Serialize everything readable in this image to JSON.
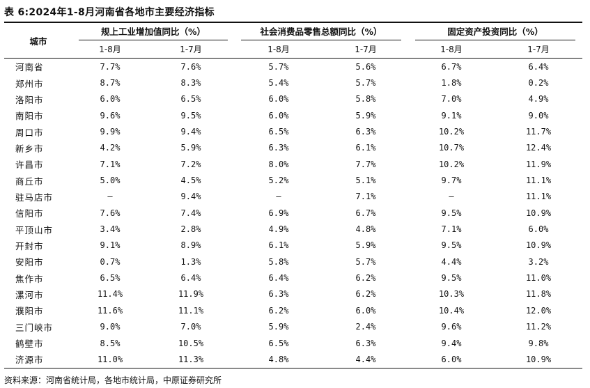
{
  "title": "表 6:2024年1-8月河南省各地市主要经济指标",
  "headers": {
    "city": "城市",
    "groups": [
      "规上工业增加值同比（%）",
      "社会消费品零售总额同比（%）",
      "固定资产投资同比（%）"
    ],
    "periods": [
      "1-8月",
      "1-7月",
      "1-8月",
      "1-7月",
      "1-8月",
      "1-7月"
    ]
  },
  "rows": [
    [
      "河南省",
      "7.7%",
      "7.6%",
      "5.7%",
      "5.6%",
      "6.7%",
      "6.4%"
    ],
    [
      "郑州市",
      "8.7%",
      "8.3%",
      "5.4%",
      "5.7%",
      "1.8%",
      "0.2%"
    ],
    [
      "洛阳市",
      "6.0%",
      "6.5%",
      "6.0%",
      "5.8%",
      "7.0%",
      "4.9%"
    ],
    [
      "南阳市",
      "9.6%",
      "9.5%",
      "6.0%",
      "5.9%",
      "9.1%",
      "9.0%"
    ],
    [
      "周口市",
      "9.9%",
      "9.4%",
      "6.5%",
      "6.3%",
      "10.2%",
      "11.7%"
    ],
    [
      "新乡市",
      "4.2%",
      "5.9%",
      "6.3%",
      "6.1%",
      "10.7%",
      "12.4%"
    ],
    [
      "许昌市",
      "7.1%",
      "7.2%",
      "8.0%",
      "7.7%",
      "10.2%",
      "11.9%"
    ],
    [
      "商丘市",
      "5.0%",
      "4.5%",
      "5.2%",
      "5.1%",
      "9.7%",
      "11.1%"
    ],
    [
      "驻马店市",
      "–",
      "9.4%",
      "–",
      "7.1%",
      "–",
      "11.1%"
    ],
    [
      "信阳市",
      "7.6%",
      "7.4%",
      "6.9%",
      "6.7%",
      "9.5%",
      "10.9%"
    ],
    [
      "平顶山市",
      "3.4%",
      "2.8%",
      "4.9%",
      "4.8%",
      "7.1%",
      "6.0%"
    ],
    [
      "开封市",
      "9.1%",
      "8.9%",
      "6.1%",
      "5.9%",
      "9.5%",
      "10.9%"
    ],
    [
      "安阳市",
      "0.7%",
      "1.3%",
      "5.8%",
      "5.7%",
      "4.4%",
      "3.2%"
    ],
    [
      "焦作市",
      "6.5%",
      "6.4%",
      "6.4%",
      "6.2%",
      "9.5%",
      "11.0%"
    ],
    [
      "漯河市",
      "11.4%",
      "11.9%",
      "6.3%",
      "6.2%",
      "10.3%",
      "11.8%"
    ],
    [
      "濮阳市",
      "11.6%",
      "11.1%",
      "6.2%",
      "6.0%",
      "10.4%",
      "12.0%"
    ],
    [
      "三门峡市",
      "9.0%",
      "7.0%",
      "5.9%",
      "2.4%",
      "9.6%",
      "11.2%"
    ],
    [
      "鹤壁市",
      "8.5%",
      "10.5%",
      "6.5%",
      "6.3%",
      "9.4%",
      "9.8%"
    ],
    [
      "济源市",
      "11.0%",
      "11.3%",
      "4.8%",
      "4.4%",
      "6.0%",
      "10.9%"
    ]
  ],
  "source": "资料来源：河南省统计局，各地市统计局，中原证券研究所"
}
